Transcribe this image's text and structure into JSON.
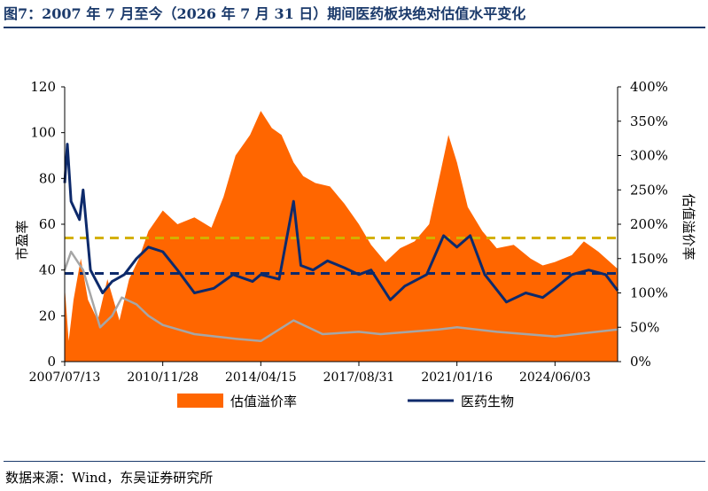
{
  "figure": {
    "title": "图7：2007 年 7 月至今（2026 年 7 月 31 日）期间医药板块绝对估值水平变化",
    "source": "数据来源：Wind，东吴证券研究所"
  },
  "colors": {
    "premium_fill": "#ff6600",
    "pharma_line": "#0d2a6b",
    "grey_line": "#a6a6a6",
    "avg_yellow": "#d4b000",
    "avg_navy": "#0d2a6b"
  },
  "chart_data": {
    "type": "area",
    "x_ticks": [
      "2007/07/13",
      "2010/11/28",
      "2014/04/15",
      "2017/08/31",
      "2021/01/16",
      "2024/06/03"
    ],
    "x_range": [
      "2007-07-13",
      "2026-07-31"
    ],
    "left_axis": {
      "label": "市盈率",
      "range": [
        0,
        120
      ],
      "ticks": [
        "0",
        "20",
        "40",
        "60",
        "80",
        "100",
        "120"
      ]
    },
    "right_axis": {
      "label": "估值溢价率",
      "range": [
        0,
        400
      ],
      "ticks": [
        "0%",
        "50%",
        "100%",
        "150%",
        "200%",
        "250%",
        "300%",
        "350%",
        "400%"
      ]
    },
    "legend": {
      "position": "bottom",
      "items": [
        "估值溢价率",
        "医药生物"
      ]
    },
    "reference_lines": [
      {
        "axis": "right",
        "value": 180,
        "style": "dashed",
        "color": "#d4b000"
      },
      {
        "axis": "left",
        "value": 38.5,
        "style": "dashed",
        "color": "#0d2a6b"
      }
    ],
    "series": [
      {
        "name": "估值溢价率",
        "axis": "right",
        "kind": "area",
        "points": [
          [
            "2007-07-13",
            110
          ],
          [
            "2007-09-01",
            30
          ],
          [
            "2007-11-01",
            90
          ],
          [
            "2008-02-01",
            150
          ],
          [
            "2008-05-01",
            90
          ],
          [
            "2008-09-01",
            60
          ],
          [
            "2009-01-01",
            120
          ],
          [
            "2009-06-01",
            60
          ],
          [
            "2009-10-01",
            120
          ],
          [
            "2010-02-01",
            150
          ],
          [
            "2010-06-01",
            190
          ],
          [
            "2010-11-28",
            220
          ],
          [
            "2011-06-01",
            200
          ],
          [
            "2012-01-01",
            210
          ],
          [
            "2012-08-01",
            195
          ],
          [
            "2013-01-01",
            240
          ],
          [
            "2013-06-01",
            300
          ],
          [
            "2013-12-01",
            330
          ],
          [
            "2014-04-15",
            365
          ],
          [
            "2014-09-01",
            340
          ],
          [
            "2015-01-01",
            330
          ],
          [
            "2015-06-01",
            290
          ],
          [
            "2015-10-01",
            270
          ],
          [
            "2016-03-01",
            260
          ],
          [
            "2016-09-01",
            255
          ],
          [
            "2017-03-01",
            230
          ],
          [
            "2017-08-31",
            200
          ],
          [
            "2018-02-01",
            170
          ],
          [
            "2018-08-01",
            145
          ],
          [
            "2019-02-01",
            165
          ],
          [
            "2019-08-01",
            175
          ],
          [
            "2020-02-01",
            200
          ],
          [
            "2020-07-01",
            280
          ],
          [
            "2020-10-01",
            330
          ],
          [
            "2021-01-16",
            290
          ],
          [
            "2021-06-01",
            225
          ],
          [
            "2021-12-01",
            190
          ],
          [
            "2022-06-01",
            165
          ],
          [
            "2023-01-01",
            170
          ],
          [
            "2023-08-01",
            150
          ],
          [
            "2024-01-01",
            140
          ],
          [
            "2024-06-03",
            145
          ],
          [
            "2025-01-01",
            155
          ],
          [
            "2025-06-01",
            175
          ],
          [
            "2025-12-01",
            160
          ],
          [
            "2026-07-31",
            135
          ]
        ]
      },
      {
        "name": "医药生物",
        "axis": "left",
        "kind": "line",
        "points": [
          [
            "2007-07-13",
            78
          ],
          [
            "2007-08-15",
            95
          ],
          [
            "2007-10-01",
            70
          ],
          [
            "2008-01-15",
            62
          ],
          [
            "2008-03-01",
            75
          ],
          [
            "2008-06-01",
            40
          ],
          [
            "2008-11-01",
            30
          ],
          [
            "2009-03-01",
            35
          ],
          [
            "2009-08-01",
            38
          ],
          [
            "2010-01-01",
            45
          ],
          [
            "2010-06-01",
            50
          ],
          [
            "2010-11-28",
            48
          ],
          [
            "2011-06-01",
            40
          ],
          [
            "2012-01-01",
            30
          ],
          [
            "2012-09-01",
            32
          ],
          [
            "2013-05-01",
            38
          ],
          [
            "2014-01-01",
            35
          ],
          [
            "2014-04-15",
            38
          ],
          [
            "2014-12-01",
            36
          ],
          [
            "2015-06-01",
            70
          ],
          [
            "2015-09-01",
            42
          ],
          [
            "2016-02-01",
            40
          ],
          [
            "2016-08-01",
            44
          ],
          [
            "2017-03-01",
            41
          ],
          [
            "2017-08-31",
            38
          ],
          [
            "2018-02-01",
            40
          ],
          [
            "2018-10-01",
            27
          ],
          [
            "2019-04-01",
            33
          ],
          [
            "2020-01-01",
            38
          ],
          [
            "2020-08-01",
            55
          ],
          [
            "2021-01-16",
            50
          ],
          [
            "2021-07-01",
            55
          ],
          [
            "2022-01-01",
            38
          ],
          [
            "2022-10-01",
            26
          ],
          [
            "2023-06-01",
            30
          ],
          [
            "2024-01-01",
            28
          ],
          [
            "2024-06-03",
            32
          ],
          [
            "2025-01-01",
            38
          ],
          [
            "2025-08-01",
            40
          ],
          [
            "2026-03-01",
            38
          ],
          [
            "2026-07-31",
            31
          ]
        ]
      },
      {
        "axis": "left",
        "kind": "line",
        "color": "#a6a6a6",
        "points": [
          [
            "2007-07-13",
            40
          ],
          [
            "2007-10-01",
            48
          ],
          [
            "2008-03-01",
            40
          ],
          [
            "2008-10-01",
            15
          ],
          [
            "2009-03-01",
            20
          ],
          [
            "2009-07-01",
            28
          ],
          [
            "2010-01-01",
            25
          ],
          [
            "2010-06-01",
            20
          ],
          [
            "2010-11-28",
            16
          ],
          [
            "2012-01-01",
            12
          ],
          [
            "2013-06-01",
            10
          ],
          [
            "2014-04-15",
            9
          ],
          [
            "2015-06-01",
            18
          ],
          [
            "2016-06-01",
            12
          ],
          [
            "2017-08-31",
            13
          ],
          [
            "2018-06-01",
            12
          ],
          [
            "2019-06-01",
            13
          ],
          [
            "2020-06-01",
            14
          ],
          [
            "2021-01-16",
            15
          ],
          [
            "2022-06-01",
            13
          ],
          [
            "2024-06-03",
            11
          ],
          [
            "2026-07-31",
            14
          ]
        ]
      }
    ]
  }
}
